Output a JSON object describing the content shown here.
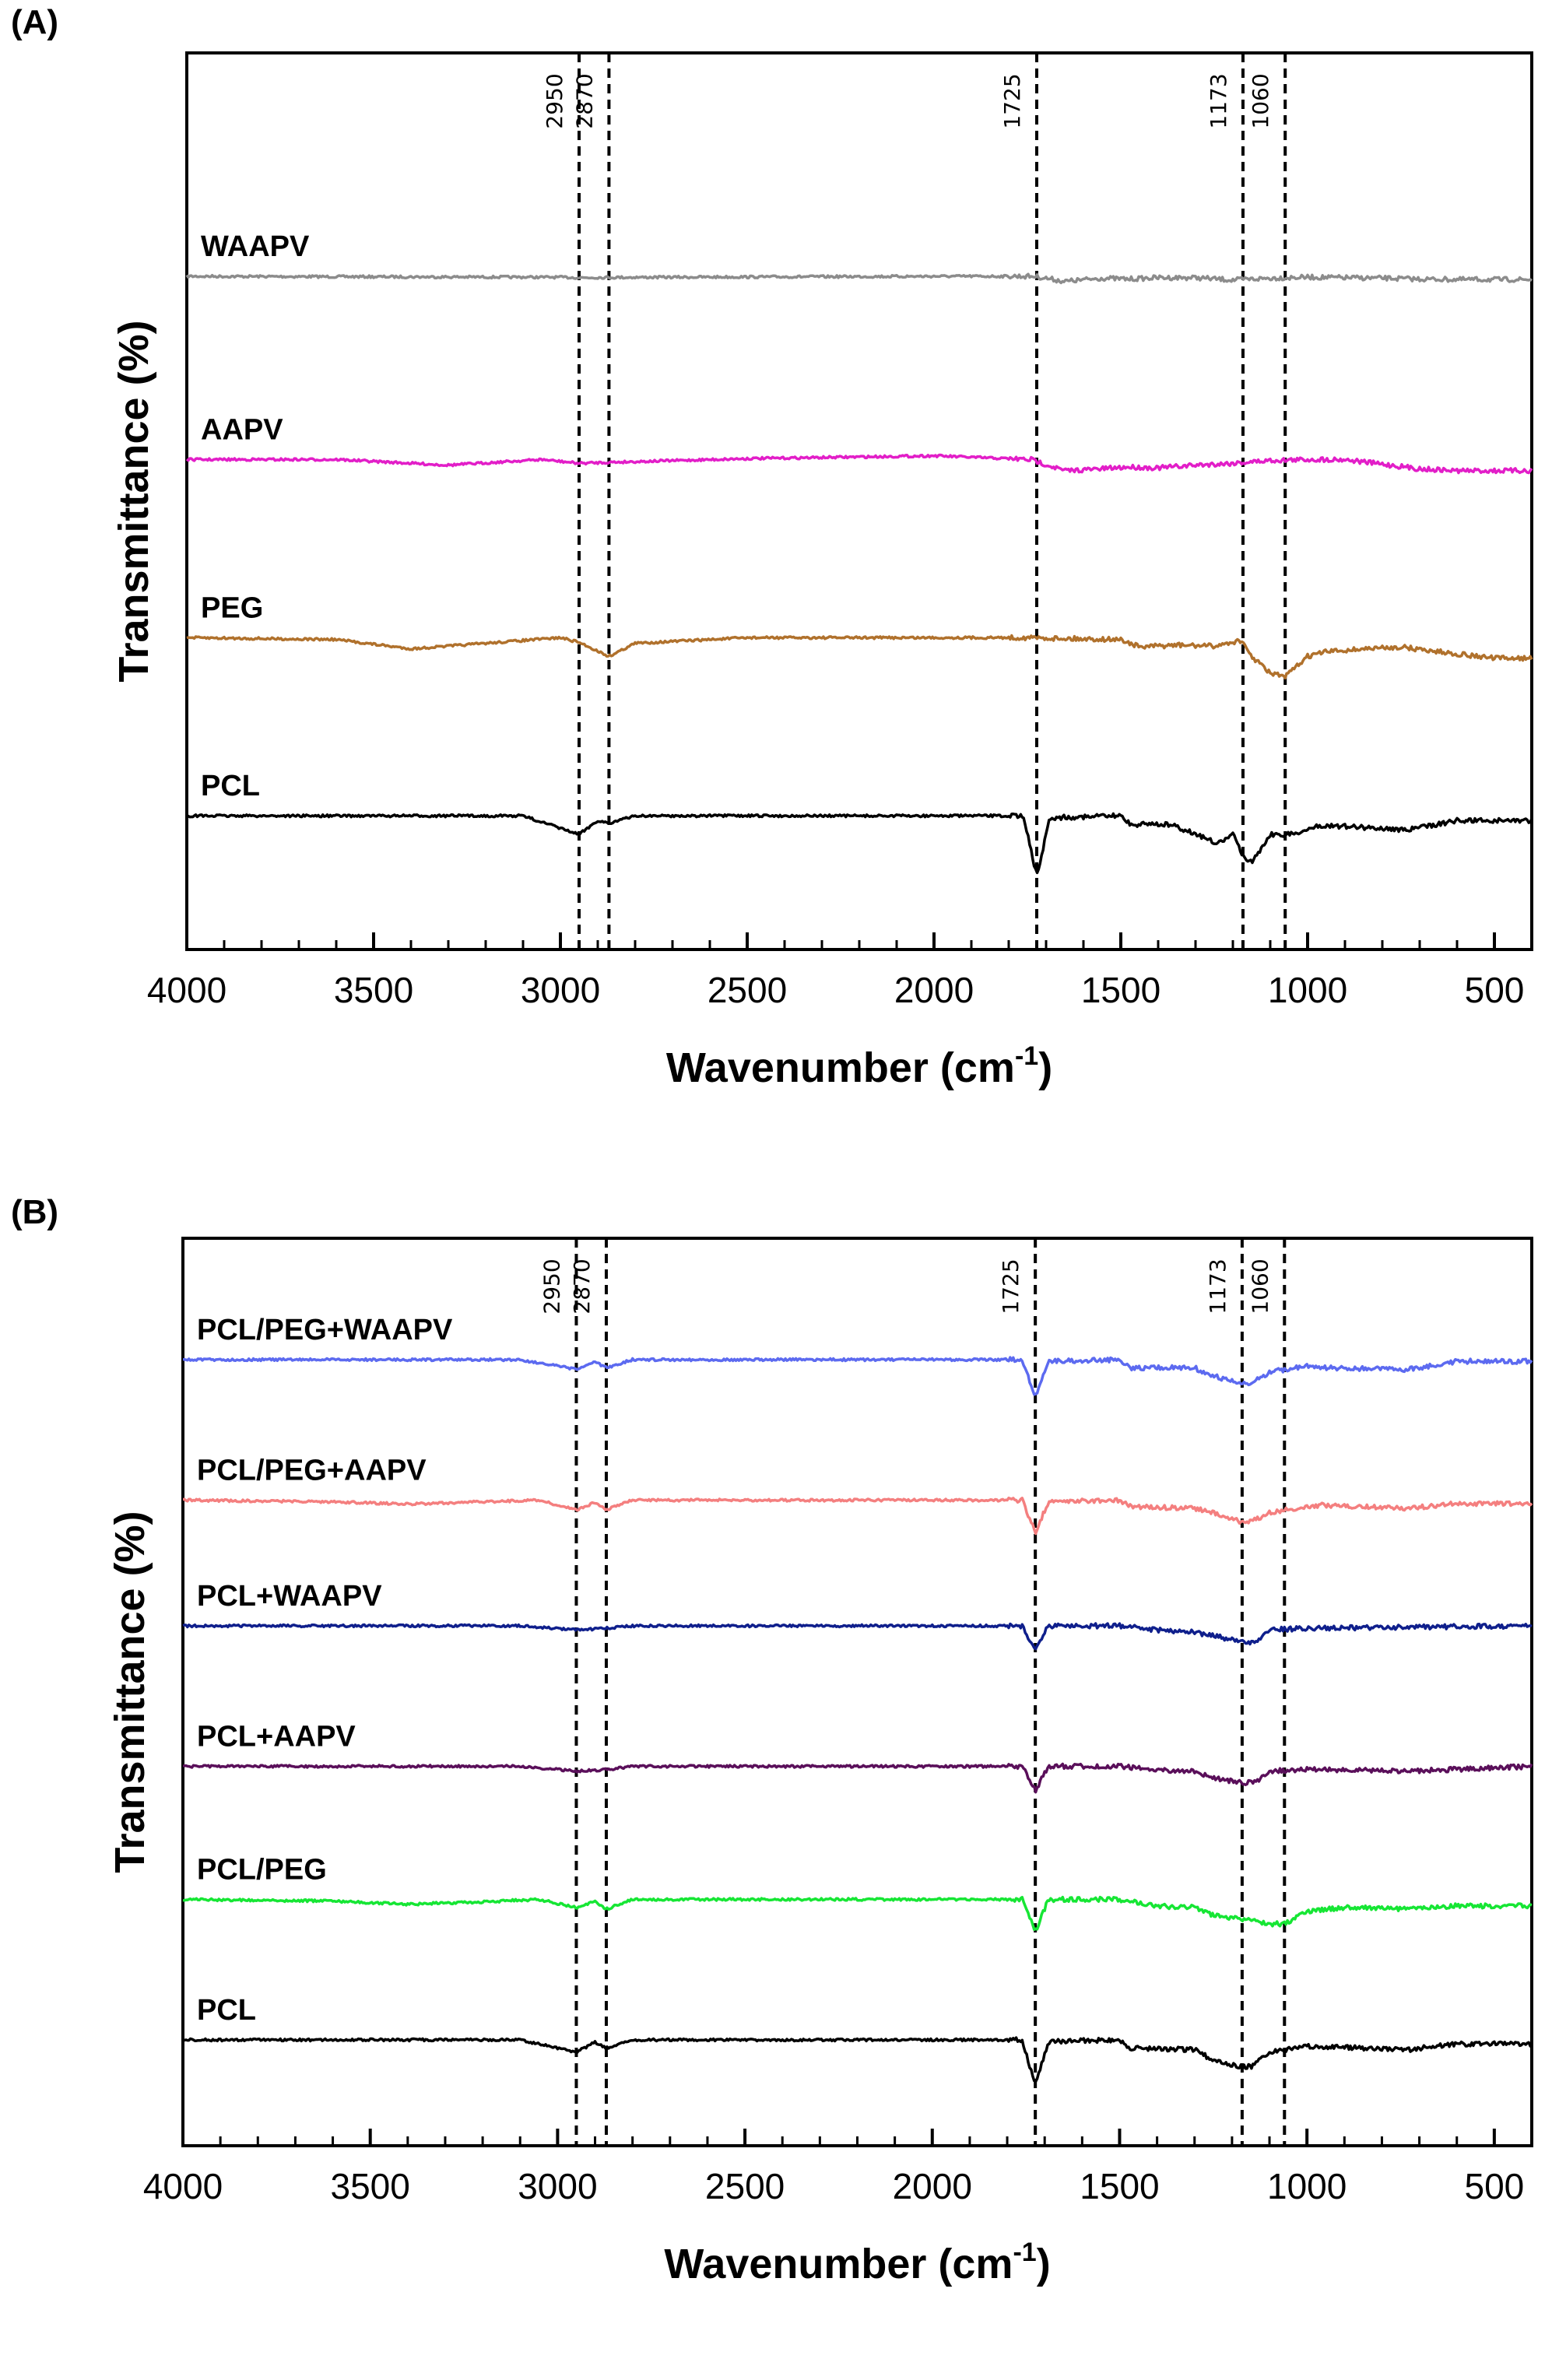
{
  "chart_data": [
    {
      "panel": "(A)",
      "type": "line",
      "xlabel": "Wavenumber (cm",
      "xlabel_sup": "-1",
      "xlabel_close": ")",
      "ylabel": "Transmittance (%)",
      "xlim": [
        4000,
        400
      ],
      "x_ticks": [
        4000,
        3500,
        3000,
        2500,
        2000,
        1500,
        1000,
        500
      ],
      "reference_lines": [
        2950,
        2870,
        1725,
        1173,
        1060
      ],
      "series": [
        {
          "name": "WAAPV",
          "color": "#8c8c8c",
          "baseline": 0.82,
          "profile": [
            [
              4000,
              0
            ],
            [
              3500,
              -0.005
            ],
            [
              3000,
              -0.01
            ],
            [
              2950,
              -0.015
            ],
            [
              2870,
              -0.012
            ],
            [
              2000,
              0
            ],
            [
              1730,
              0
            ],
            [
              1650,
              -0.055
            ],
            [
              1550,
              -0.02
            ],
            [
              1480,
              -0.03
            ],
            [
              1400,
              -0.015
            ],
            [
              1300,
              -0.015
            ],
            [
              1200,
              -0.04
            ],
            [
              1100,
              -0.02
            ],
            [
              1000,
              -0.01
            ],
            [
              800,
              -0.02
            ],
            [
              700,
              -0.03
            ],
            [
              600,
              -0.035
            ],
            [
              400,
              -0.035
            ]
          ]
        },
        {
          "name": "AAPV",
          "color": "#e21ec8",
          "baseline": 1.9,
          "profile": [
            [
              4000,
              0
            ],
            [
              3600,
              0
            ],
            [
              3300,
              -0.06
            ],
            [
              3050,
              0
            ],
            [
              2950,
              -0.04
            ],
            [
              2870,
              -0.03
            ],
            [
              2500,
              0.01
            ],
            [
              2000,
              0.04
            ],
            [
              1740,
              0
            ],
            [
              1650,
              -0.12
            ],
            [
              1550,
              -0.1
            ],
            [
              1480,
              -0.08
            ],
            [
              1400,
              -0.09
            ],
            [
              1300,
              -0.06
            ],
            [
              1200,
              -0.04
            ],
            [
              1100,
              -0.01
            ],
            [
              1000,
              0
            ],
            [
              900,
              0.0
            ],
            [
              800,
              -0.05
            ],
            [
              700,
              -0.1
            ],
            [
              600,
              -0.12
            ],
            [
              400,
              -0.12
            ]
          ]
        },
        {
          "name": "PEG",
          "color": "#b0712c",
          "baseline": 2.95,
          "profile": [
            [
              4000,
              0
            ],
            [
              3600,
              -0.02
            ],
            [
              3400,
              -0.12
            ],
            [
              3200,
              -0.06
            ],
            [
              3000,
              0
            ],
            [
              2950,
              -0.05
            ],
            [
              2870,
              -0.2
            ],
            [
              2800,
              -0.06
            ],
            [
              2500,
              0
            ],
            [
              1750,
              0
            ],
            [
              1500,
              -0.02
            ],
            [
              1450,
              -0.1
            ],
            [
              1350,
              -0.08
            ],
            [
              1250,
              -0.09
            ],
            [
              1180,
              -0.03
            ],
            [
              1150,
              -0.2
            ],
            [
              1100,
              -0.38
            ],
            [
              1060,
              -0.42
            ],
            [
              1000,
              -0.2
            ],
            [
              950,
              -0.15
            ],
            [
              850,
              -0.12
            ],
            [
              750,
              -0.1
            ],
            [
              650,
              -0.15
            ],
            [
              500,
              -0.22
            ],
            [
              400,
              -0.22
            ]
          ]
        },
        {
          "name": "PCL",
          "color": "#000000",
          "baseline": 4.0,
          "profile": [
            [
              4000,
              0
            ],
            [
              3100,
              0
            ],
            [
              2950,
              -0.2
            ],
            [
              2900,
              -0.05
            ],
            [
              2870,
              -0.08
            ],
            [
              2800,
              0
            ],
            [
              1760,
              0
            ],
            [
              1725,
              -0.65
            ],
            [
              1690,
              -0.02
            ],
            [
              1500,
              0
            ],
            [
              1470,
              -0.1
            ],
            [
              1420,
              -0.08
            ],
            [
              1365,
              -0.1
            ],
            [
              1295,
              -0.2
            ],
            [
              1240,
              -0.3
            ],
            [
              1200,
              -0.2
            ],
            [
              1173,
              -0.42
            ],
            [
              1150,
              -0.5
            ],
            [
              1100,
              -0.2
            ],
            [
              1045,
              -0.2
            ],
            [
              960,
              -0.1
            ],
            [
              730,
              -0.15
            ],
            [
              600,
              -0.05
            ],
            [
              400,
              -0.05
            ]
          ]
        }
      ]
    },
    {
      "panel": "(B)",
      "type": "line",
      "xlabel": "Wavenumber (cm",
      "xlabel_sup": "-1",
      "xlabel_close": ")",
      "ylabel": "Transmittance (%)",
      "xlim": [
        4000,
        400
      ],
      "x_ticks": [
        4000,
        3500,
        3000,
        2500,
        2000,
        1500,
        1000,
        500
      ],
      "reference_lines": [
        2950,
        2870,
        1725,
        1173,
        1060
      ],
      "series": [
        {
          "name": "PCL/PEG+WAAPV",
          "color": "#5c6af0",
          "baseline": 0.4,
          "profile": [
            [
              4000,
              0
            ],
            [
              3100,
              0
            ],
            [
              2950,
              -0.12
            ],
            [
              2900,
              -0.03
            ],
            [
              2870,
              -0.1
            ],
            [
              2800,
              0
            ],
            [
              1760,
              0
            ],
            [
              1725,
              -0.45
            ],
            [
              1690,
              -0.02
            ],
            [
              1500,
              0
            ],
            [
              1470,
              -0.1
            ],
            [
              1300,
              -0.1
            ],
            [
              1250,
              -0.2
            ],
            [
              1173,
              -0.3
            ],
            [
              1150,
              -0.3
            ],
            [
              1100,
              -0.15
            ],
            [
              1000,
              -0.08
            ],
            [
              960,
              -0.1
            ],
            [
              730,
              -0.12
            ],
            [
              600,
              -0.02
            ],
            [
              400,
              -0.02
            ]
          ]
        },
        {
          "name": "PCL/PEG+AAPV",
          "color": "#f47f7f",
          "baseline": 1.35,
          "profile": [
            [
              4000,
              0
            ],
            [
              3600,
              -0.02
            ],
            [
              3400,
              -0.05
            ],
            [
              3200,
              -0.02
            ],
            [
              3050,
              0
            ],
            [
              2950,
              -0.12
            ],
            [
              2900,
              -0.03
            ],
            [
              2870,
              -0.12
            ],
            [
              2800,
              0
            ],
            [
              1760,
              0
            ],
            [
              1725,
              -0.4
            ],
            [
              1690,
              -0.02
            ],
            [
              1500,
              0
            ],
            [
              1470,
              -0.08
            ],
            [
              1300,
              -0.1
            ],
            [
              1250,
              -0.15
            ],
            [
              1173,
              -0.27
            ],
            [
              1150,
              -0.27
            ],
            [
              1100,
              -0.15
            ],
            [
              1000,
              -0.08
            ],
            [
              960,
              -0.06
            ],
            [
              730,
              -0.1
            ],
            [
              600,
              -0.04
            ],
            [
              400,
              -0.04
            ]
          ]
        },
        {
          "name": "PCL+WAAPV",
          "color": "#0f1f8c",
          "baseline": 2.2,
          "profile": [
            [
              4000,
              0
            ],
            [
              3100,
              0
            ],
            [
              2950,
              -0.05
            ],
            [
              2870,
              -0.03
            ],
            [
              2800,
              0
            ],
            [
              1760,
              0
            ],
            [
              1725,
              -0.3
            ],
            [
              1690,
              0
            ],
            [
              1500,
              0
            ],
            [
              1400,
              -0.05
            ],
            [
              1300,
              -0.08
            ],
            [
              1250,
              -0.12
            ],
            [
              1173,
              -0.2
            ],
            [
              1140,
              -0.2
            ],
            [
              1100,
              -0.05
            ],
            [
              1000,
              -0.03
            ],
            [
              400,
              0
            ]
          ]
        },
        {
          "name": "PCL+AAPV",
          "color": "#5a0f5a",
          "baseline": 3.15,
          "profile": [
            [
              4000,
              0
            ],
            [
              3100,
              0
            ],
            [
              2950,
              -0.06
            ],
            [
              2870,
              -0.04
            ],
            [
              2800,
              0
            ],
            [
              1760,
              0
            ],
            [
              1725,
              -0.3
            ],
            [
              1690,
              0
            ],
            [
              1500,
              0
            ],
            [
              1400,
              -0.05
            ],
            [
              1300,
              -0.06
            ],
            [
              1250,
              -0.15
            ],
            [
              1173,
              -0.2
            ],
            [
              1140,
              -0.2
            ],
            [
              1100,
              -0.06
            ],
            [
              1000,
              -0.04
            ],
            [
              730,
              -0.06
            ],
            [
              400,
              0
            ]
          ]
        },
        {
          "name": "PCL/PEG",
          "color": "#16e634",
          "baseline": 4.05,
          "profile": [
            [
              4000,
              0
            ],
            [
              3600,
              -0.02
            ],
            [
              3400,
              -0.06
            ],
            [
              3200,
              -0.03
            ],
            [
              3050,
              0
            ],
            [
              2950,
              -0.1
            ],
            [
              2900,
              -0.02
            ],
            [
              2870,
              -0.12
            ],
            [
              2800,
              0
            ],
            [
              1760,
              0
            ],
            [
              1725,
              -0.4
            ],
            [
              1690,
              0
            ],
            [
              1500,
              0
            ],
            [
              1400,
              -0.08
            ],
            [
              1300,
              -0.1
            ],
            [
              1250,
              -0.2
            ],
            [
              1150,
              -0.25
            ],
            [
              1100,
              -0.3
            ],
            [
              1060,
              -0.3
            ],
            [
              1000,
              -0.15
            ],
            [
              900,
              -0.1
            ],
            [
              730,
              -0.12
            ],
            [
              600,
              -0.08
            ],
            [
              400,
              -0.08
            ]
          ]
        },
        {
          "name": "PCL",
          "color": "#000000",
          "baseline": 5.0,
          "profile": [
            [
              4000,
              0
            ],
            [
              3100,
              0
            ],
            [
              2950,
              -0.15
            ],
            [
              2900,
              -0.03
            ],
            [
              2870,
              -0.1
            ],
            [
              2800,
              0
            ],
            [
              1760,
              0
            ],
            [
              1725,
              -0.55
            ],
            [
              1690,
              -0.02
            ],
            [
              1500,
              0
            ],
            [
              1470,
              -0.1
            ],
            [
              1300,
              -0.12
            ],
            [
              1250,
              -0.25
            ],
            [
              1173,
              -0.33
            ],
            [
              1150,
              -0.33
            ],
            [
              1100,
              -0.15
            ],
            [
              1000,
              -0.08
            ],
            [
              960,
              -0.08
            ],
            [
              730,
              -0.12
            ],
            [
              600,
              -0.05
            ],
            [
              400,
              -0.05
            ]
          ]
        }
      ]
    }
  ]
}
